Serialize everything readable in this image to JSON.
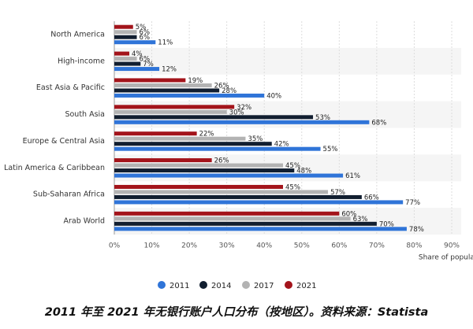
{
  "chart_data": {
    "type": "hbar",
    "caption": "2011 年至 2021 年无银行账户人口分布（按地区）。资料来源：Statista",
    "x_label": "Share of population",
    "categories": [
      "North America",
      "High-income",
      "East Asia & Pacific",
      "South Asia",
      "Europe & Central Asia",
      "Latin America & Caribbean",
      "Sub-Saharan Africa",
      "Arab World"
    ],
    "series": [
      {
        "name": "2011",
        "color": "#2f74d8",
        "values": [
          11,
          12,
          40,
          68,
          55,
          61,
          77,
          78
        ],
        "value_labels": [
          "11%",
          "12%",
          "40%",
          "68%",
          "55%",
          "61%",
          "77%",
          "78%"
        ]
      },
      {
        "name": "2014",
        "color": "#111e30",
        "values": [
          6,
          7,
          28,
          53,
          42,
          48,
          66,
          70
        ],
        "value_labels": [
          "6%",
          "7%",
          "28%",
          "53%",
          "42%",
          "48%",
          "66%",
          "70%"
        ]
      },
      {
        "name": "2017",
        "color": "#b3b3b3",
        "values": [
          6,
          6,
          26,
          30,
          35,
          45,
          57,
          63
        ],
        "value_labels": [
          "6%",
          "6%",
          "26%",
          "30%",
          "35%",
          "45%",
          "57%",
          "63%"
        ]
      },
      {
        "name": "2021",
        "color": "#a3141b",
        "values": [
          5,
          4,
          19,
          32,
          22,
          26,
          45,
          60
        ],
        "value_labels": [
          "5%",
          "4%",
          "19%",
          "32%",
          "22%",
          "26%",
          "45%",
          "60%"
        ]
      }
    ],
    "xlim": [
      0,
      90
    ],
    "xticks": [
      {
        "value": 0,
        "label": "0%"
      },
      {
        "value": 10,
        "label": "10%"
      },
      {
        "value": 20,
        "label": "20%"
      },
      {
        "value": 30,
        "label": "30%"
      },
      {
        "value": 40,
        "label": "40%"
      },
      {
        "value": 50,
        "label": "50%"
      },
      {
        "value": 60,
        "label": "60%"
      },
      {
        "value": 70,
        "label": "70%"
      },
      {
        "value": 80,
        "label": "80%"
      },
      {
        "value": 90,
        "label": "90%"
      }
    ],
    "grid": true,
    "legend": "bottom"
  }
}
